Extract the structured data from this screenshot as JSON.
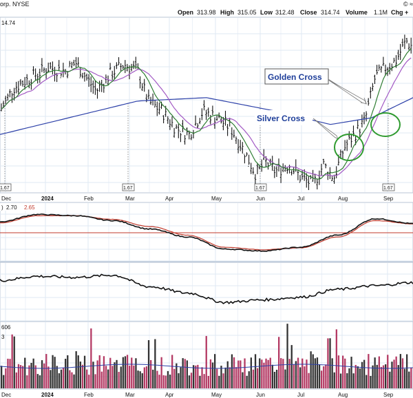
{
  "header": {
    "left": "orp. NYSE",
    "right_top": "© ≈",
    "open_label": "Open",
    "open": "313.98",
    "high_label": "High",
    "high": "315.05",
    "low_label": "Low",
    "low": "312.48",
    "close_label": "Close",
    "close": "314.74",
    "volume_label": "Volume",
    "volume": "1.1M",
    "chg_label": "Chg +"
  },
  "price_panel": {
    "last_price_label": "14.74",
    "annotations": [
      "Golden Cross",
      "Silver Cross"
    ],
    "dividend_label": "1.67"
  },
  "ppo_panel": {
    "prefix": ")",
    "v1": "2.70",
    "v2": "2.65"
  },
  "volume_panel": {
    "line1": "606",
    "line2": "3"
  },
  "colors": {
    "grid": "#dfe8f3",
    "ma_short": "#2e7d32",
    "ma_mid": "#a259c4",
    "ma_long": "#2b3fa8",
    "annotation_text": "#1f3f9a",
    "circle": "#2e9a2e",
    "volume_up": "#333333",
    "volume_down": "#b43a64",
    "ppo_signal": "#c0392b"
  },
  "chart_data": [
    {
      "type": "bar",
      "subtype": "ohlc",
      "title": "",
      "x": [
        "Dec",
        "2024",
        "Feb",
        "Mar",
        "Apr",
        "May",
        "Jun",
        "Jul",
        "Aug",
        "Sep"
      ],
      "x_tick_labels": [
        "Dec",
        "2024",
        "Feb",
        "Mar",
        "Apr",
        "May",
        "Jun",
        "Jul",
        "Aug",
        "Sep"
      ],
      "close_approx": [
        280,
        300,
        305,
        302,
        268,
        272,
        250,
        245,
        275,
        314.74
      ],
      "last_close": 314.74,
      "series": [
        {
          "name": "",
          "role": "short moving average"
        },
        {
          "name": "",
          "role": "medium moving average"
        },
        {
          "name": "",
          "role": "long moving average"
        }
      ],
      "annotations": [
        {
          "text": "Golden Cross",
          "at": "early Sep"
        },
        {
          "text": "Silver Cross",
          "at": "early Aug"
        }
      ],
      "dividend_markers": [
        {
          "at": "late Nov",
          "label": "1.67"
        },
        {
          "at": "late Feb",
          "label": "1.67"
        },
        {
          "at": "late May",
          "label": "1.67"
        },
        {
          "at": "late Aug",
          "label": "1.67"
        }
      ],
      "grid": true
    },
    {
      "type": "line",
      "title": "",
      "series": [
        {
          "name": "2.70",
          "values": [
            3.0,
            4.2,
            4.0,
            3.2,
            1.8,
            0.5,
            -1.5,
            -1.8,
            -1.2,
            0.8,
            3.5,
            2.7
          ]
        },
        {
          "name": "2.65",
          "values": [
            2.8,
            4.0,
            4.0,
            3.4,
            2.2,
            0.8,
            -1.2,
            -1.6,
            -1.3,
            0.5,
            3.2,
            2.65
          ]
        }
      ],
      "grid": true
    },
    {
      "type": "line",
      "title": "",
      "series": [
        {
          "name": "",
          "values": [
            0.72,
            0.8,
            0.78,
            0.82,
            0.6,
            0.48,
            0.3,
            0.35,
            0.4,
            0.55,
            0.62,
            0.68
          ]
        }
      ],
      "grid": true
    },
    {
      "type": "bar",
      "title": "",
      "label": "Volume",
      "grid": true
    }
  ]
}
